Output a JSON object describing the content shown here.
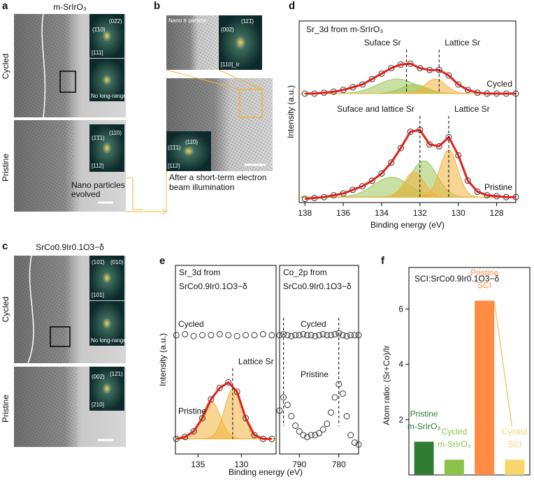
{
  "panel_labels": [
    "a",
    "b",
    "c",
    "d",
    "e",
    "f"
  ],
  "panel_a": {
    "title": "m-SrIrO₃",
    "rows": [
      "Cycled",
      "Pristine"
    ],
    "fft_labels": [
      "(1̄10)",
      "(02̄2)",
      "[111]",
      "No long-range order",
      "(1̄1̄1)",
      "(11̄0)",
      "[112]"
    ],
    "annotation": [
      "Nano particles",
      "evolved"
    ]
  },
  "panel_b": {
    "fft_labels": [
      "Nano Ir particle",
      "(002)",
      "(11̄1̄)",
      "[110]_Ir",
      "(1̄1̄1)",
      "(11̄0)",
      "[112]"
    ],
    "caption": [
      "After a short-term electron",
      "beam illumination"
    ]
  },
  "panel_c": {
    "title": "SrCo0.9Ir0.1O3−δ",
    "rows": [
      "Cycled",
      "Pristine"
    ],
    "fft_labels": [
      "(101̄)",
      "(010)",
      "[101]",
      "No long-range order",
      "(002)",
      "(12̄1)",
      "[210]"
    ]
  },
  "chart_data": [
    {
      "type": "line",
      "title": "Sr_3d from m-SrIrO₃",
      "xlabel": "Binding energy (eV)",
      "ylabel": "Intensity (a.u.)",
      "xlim": [
        138.3,
        127
      ],
      "ylim": [
        0,
        10
      ],
      "xticks": [
        138,
        136,
        134,
        132,
        130,
        128
      ],
      "x": [
        138,
        137.5,
        137,
        136.5,
        136,
        135.5,
        135,
        134.5,
        134,
        133.5,
        133,
        132.5,
        132,
        131.5,
        131,
        130.5,
        130,
        129.5,
        129,
        128.5,
        128,
        127.5,
        127
      ],
      "series": [
        {
          "name": "Cycled",
          "color": "#e0201b",
          "baseline": 6.0,
          "values": [
            6.0,
            6.0,
            6.05,
            6.1,
            6.2,
            6.35,
            6.5,
            6.8,
            7.1,
            7.4,
            7.6,
            7.65,
            7.4,
            7.3,
            7.3,
            7.0,
            6.5,
            6.2,
            6.05,
            6.0,
            6.0,
            6.0,
            6.0
          ],
          "peaks": [
            {
              "center": 133.2,
              "height": 0.8,
              "width": 2.4,
              "color": "#9cc75a"
            },
            {
              "center": 132.3,
              "height": 0.5,
              "width": 1.6,
              "color": "#9cc75a"
            },
            {
              "center": 131.2,
              "height": 0.8,
              "width": 1.3,
              "color": "#f2b33d"
            }
          ],
          "annotations": [
            {
              "text": "Suface Sr",
              "x": 132.7
            },
            {
              "text": "Lattice Sr",
              "x": 131.0
            }
          ]
        },
        {
          "name": "Pristine",
          "color": "#e0201b",
          "baseline": 0.3,
          "values": [
            0.2,
            0.25,
            0.3,
            0.4,
            0.5,
            0.7,
            0.9,
            1.2,
            1.6,
            2.2,
            3.0,
            3.9,
            4.0,
            3.2,
            3.1,
            3.6,
            2.6,
            1.2,
            0.6,
            0.4,
            0.35,
            0.3,
            0.3
          ],
          "peaks": [
            {
              "center": 133.5,
              "height": 1.1,
              "width": 2.2,
              "color": "#9cc75a"
            },
            {
              "center": 131.8,
              "height": 2.0,
              "width": 1.6,
              "color": "#9cc75a"
            },
            {
              "center": 132.3,
              "height": 1.4,
              "width": 1.2,
              "color": "#f2b33d"
            },
            {
              "center": 130.5,
              "height": 2.6,
              "width": 1.1,
              "color": "#f2b33d"
            }
          ],
          "annotations": [
            {
              "text": "Suface and lattice Sr",
              "x": 132.0
            },
            {
              "text": "Lattice Sr",
              "x": 130.5
            }
          ]
        }
      ]
    },
    {
      "type": "line",
      "title": [
        "Sr_3d from",
        "SrCo0.9Ir0.1O3−δ"
      ],
      "xlabel": "Binding energy (eV)",
      "ylabel": "Intensity (a.u.)",
      "xlim": [
        137.6,
        126
      ],
      "ylim": [
        0,
        10
      ],
      "xticks": [
        135,
        130
      ],
      "x": [
        137.5,
        136.5,
        135.5,
        134.5,
        133.5,
        132.5,
        131.5,
        130.5,
        129.5,
        128.5,
        127.5,
        126.5
      ],
      "series": [
        {
          "name": "Cycled",
          "values": [
            6.3,
            6.35,
            6.25,
            6.3,
            6.3,
            6.35,
            6.3,
            6.25,
            6.3,
            6.3,
            6.35,
            6.3
          ]
        },
        {
          "name": "Pristine",
          "color": "#e0201b",
          "baseline": 0.8,
          "values": [
            0.8,
            0.9,
            1.2,
            1.9,
            2.9,
            3.5,
            3.8,
            3.3,
            1.9,
            1.0,
            0.8,
            0.8
          ],
          "peaks": [
            {
              "center": 133.5,
              "height": 2.0,
              "width": 2.5,
              "color": "#f2b33d"
            },
            {
              "center": 130.9,
              "height": 2.7,
              "width": 2.4,
              "color": "#f2b33d"
            }
          ],
          "annotations": [
            {
              "text": "Lattice Sr",
              "x": 131.0
            }
          ]
        }
      ]
    },
    {
      "type": "line",
      "title": [
        "Co_2p from",
        "SrCo0.9Ir0.1O3−δ"
      ],
      "xlim": [
        795,
        775
      ],
      "ylim": [
        0,
        10
      ],
      "xticks": [
        790,
        780
      ],
      "markers": [
        794,
        780
      ],
      "x": [
        795,
        794,
        793,
        792,
        791,
        790,
        789,
        788,
        787,
        786,
        785,
        784,
        783,
        782,
        781,
        780,
        779,
        778,
        777,
        776,
        775
      ],
      "series": [
        {
          "name": "Cycled",
          "values": [
            6.3,
            6.35,
            6.3,
            6.25,
            6.3,
            6.3,
            6.35,
            6.3,
            6.3,
            6.25,
            6.3,
            6.35,
            6.3,
            6.3,
            6.35,
            6.4,
            6.3,
            6.25,
            6.3,
            6.3,
            6.3
          ]
        },
        {
          "name": "Pristine",
          "values": [
            2.3,
            3.0,
            2.6,
            2.0,
            1.5,
            1.2,
            1.0,
            0.9,
            1.0,
            1.0,
            1.1,
            1.3,
            1.6,
            2.2,
            3.0,
            3.7,
            3.2,
            2.0,
            1.0,
            0.6,
            0.5
          ]
        }
      ]
    },
    {
      "type": "bar",
      "title": "SCI:SrCo0.9Ir0.1O3−δ",
      "ylabel": "Atom ratio: (Sr+Co)/Ir",
      "ylim": [
        0,
        7.5
      ],
      "yticks": [
        2,
        4,
        6
      ],
      "categories": [
        [
          "Pristine",
          "m-SrIrO₃"
        ],
        [
          "Cycled",
          "m-SrIrO₃"
        ],
        [
          "Pristine",
          "SCI"
        ],
        [
          "Cycled",
          "SCI"
        ]
      ],
      "values": [
        1.2,
        0.55,
        6.3,
        0.55
      ],
      "colors": [
        "#2e7d32",
        "#8bc34a",
        "#ff8c42",
        "#f7d66b"
      ]
    }
  ]
}
